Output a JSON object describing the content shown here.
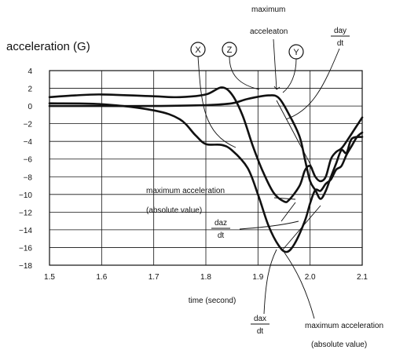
{
  "chart_data": {
    "type": "line",
    "ylabel": "acceleration (G)",
    "xlabel": "time (second)",
    "xlim": [
      1.5,
      2.1
    ],
    "ylim": [
      -18,
      4
    ],
    "x_ticks": [
      1.5,
      1.6,
      1.7,
      1.8,
      1.9,
      2.0,
      2.1
    ],
    "x_tick_labels": [
      "1.5",
      "1.6",
      "1.7",
      "1.8",
      "1.9",
      "2.0",
      "2.1"
    ],
    "y_ticks": [
      4,
      2,
      0,
      -2,
      -4,
      -6,
      -8,
      -10,
      -12,
      -14,
      -16,
      -18
    ],
    "y_tick_labels": [
      "4",
      "2",
      "0",
      "−2",
      "−4",
      "−6",
      "−8",
      "−10",
      "−12",
      "−14",
      "−16",
      "−18"
    ],
    "grid": true,
    "series": [
      {
        "name": "X",
        "points": [
          [
            1.5,
            0.3
          ],
          [
            1.6,
            0.2
          ],
          [
            1.7,
            -0.5
          ],
          [
            1.75,
            -1.5
          ],
          [
            1.78,
            -3.3
          ],
          [
            1.8,
            -4.3
          ],
          [
            1.83,
            -4.4
          ],
          [
            1.85,
            -5.0
          ],
          [
            1.88,
            -7.0
          ],
          [
            1.9,
            -10.0
          ],
          [
            1.92,
            -13.5
          ],
          [
            1.94,
            -15.8
          ],
          [
            1.955,
            -16.5
          ],
          [
            1.97,
            -15.6
          ],
          [
            1.99,
            -13.0
          ],
          [
            2.0,
            -11.0
          ],
          [
            2.01,
            -9.5
          ],
          [
            2.02,
            -9.6
          ],
          [
            2.03,
            -8.8
          ],
          [
            2.04,
            -8.3
          ],
          [
            2.05,
            -7.2
          ],
          [
            2.06,
            -6.8
          ],
          [
            2.07,
            -5.5
          ],
          [
            2.08,
            -4.5
          ],
          [
            2.09,
            -3.5
          ],
          [
            2.1,
            -3.0
          ]
        ]
      },
      {
        "name": "Z",
        "points": [
          [
            1.5,
            0.0
          ],
          [
            1.6,
            0.0
          ],
          [
            1.7,
            0.0
          ],
          [
            1.8,
            0.1
          ],
          [
            1.85,
            0.3
          ],
          [
            1.88,
            0.8
          ],
          [
            1.92,
            1.2
          ],
          [
            1.94,
            0.9
          ],
          [
            1.96,
            -1.0
          ],
          [
            1.98,
            -3.5
          ],
          [
            1.99,
            -6.0
          ],
          [
            2.0,
            -8.5
          ],
          [
            2.01,
            -9.5
          ],
          [
            2.02,
            -10.5
          ],
          [
            2.03,
            -9.6
          ],
          [
            2.04,
            -8.0
          ],
          [
            2.05,
            -6.5
          ],
          [
            2.06,
            -5.0
          ],
          [
            2.07,
            -5.3
          ],
          [
            2.08,
            -3.7
          ],
          [
            2.1,
            -3.5
          ]
        ]
      },
      {
        "name": "Y",
        "points": [
          [
            1.5,
            1.0
          ],
          [
            1.55,
            1.2
          ],
          [
            1.6,
            1.3
          ],
          [
            1.7,
            1.1
          ],
          [
            1.75,
            1.0
          ],
          [
            1.8,
            1.3
          ],
          [
            1.83,
            2.1
          ],
          [
            1.85,
            1.3
          ],
          [
            1.87,
            -1.0
          ],
          [
            1.89,
            -4.5
          ],
          [
            1.91,
            -7.5
          ],
          [
            1.93,
            -9.8
          ],
          [
            1.95,
            -10.8
          ],
          [
            1.96,
            -10.6
          ],
          [
            1.98,
            -9.0
          ],
          [
            1.99,
            -7.3
          ],
          [
            2.0,
            -6.8
          ],
          [
            2.01,
            -8.0
          ],
          [
            2.02,
            -8.5
          ],
          [
            2.03,
            -8.0
          ],
          [
            2.04,
            -6.0
          ],
          [
            2.05,
            -5.2
          ],
          [
            2.06,
            -4.8
          ],
          [
            2.07,
            -4.0
          ],
          [
            2.09,
            -2.2
          ],
          [
            2.1,
            -1.3
          ]
        ]
      }
    ],
    "circle_labels": [
      {
        "text": "X",
        "series": "X"
      },
      {
        "text": "Z",
        "series": "Z"
      },
      {
        "text": "Y",
        "series": "Y"
      }
    ],
    "annotations": {
      "max_accel_top_line1": "maximum",
      "max_accel_top_line2": "acceleaton",
      "max_accel_mid_line1": "maximum acceleration",
      "max_accel_mid_line2": "(absolute value)",
      "max_accel_bottom_line1": "maximum acceleration",
      "max_accel_bottom_line2": "(absolute value)",
      "day_num": "day",
      "day_den": "dt",
      "daz_num": "daz",
      "daz_den": "dt",
      "dax_num": "dax",
      "dax_den": "dt"
    }
  }
}
